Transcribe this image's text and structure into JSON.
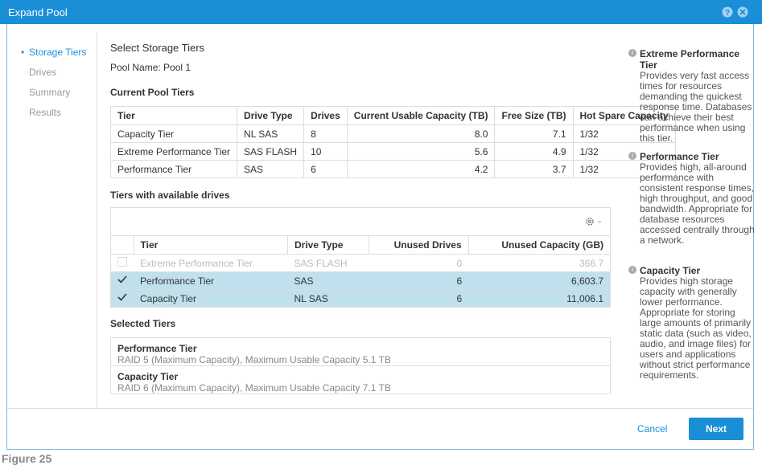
{
  "dialog": {
    "title": "Expand Pool"
  },
  "nav": [
    {
      "label": "Storage Tiers",
      "current": true
    },
    {
      "label": "Drives",
      "current": false
    },
    {
      "label": "Summary",
      "current": false
    },
    {
      "label": "Results",
      "current": false
    }
  ],
  "main": {
    "heading": "Select Storage Tiers",
    "pool_name": "Pool Name: Pool 1",
    "current_tiers": {
      "heading": "Current Pool Tiers",
      "columns": [
        "Tier",
        "Drive Type",
        "Drives",
        "Current Usable Capacity (TB)",
        "Free Size (TB)",
        "Hot Spare Capacity"
      ],
      "rows": [
        [
          "Capacity Tier",
          "NL SAS",
          "8",
          "8.0",
          "7.1",
          "1/32"
        ],
        [
          "Extreme Performance Tier",
          "SAS FLASH",
          "10",
          "5.6",
          "4.9",
          "1/32"
        ],
        [
          "Performance Tier",
          "SAS",
          "6",
          "4.2",
          "3.7",
          "1/32"
        ]
      ]
    },
    "available_tiers": {
      "heading": "Tiers with available drives",
      "columns": [
        "Tier",
        "Drive Type",
        "Unused Drives",
        "Unused Capacity (GB)"
      ],
      "rows": [
        {
          "enabled": false,
          "checked": false,
          "cells": [
            "Extreme Performance Tier",
            "SAS FLASH",
            "0",
            "366.7"
          ]
        },
        {
          "enabled": true,
          "checked": true,
          "cells": [
            "Performance Tier",
            "SAS",
            "6",
            "6,603.7"
          ]
        },
        {
          "enabled": true,
          "checked": true,
          "cells": [
            "Capacity Tier",
            "NL SAS",
            "6",
            "11,006.1"
          ]
        }
      ]
    },
    "selected_tiers": {
      "heading": "Selected Tiers",
      "items": [
        {
          "title": "Performance Tier",
          "detail": "RAID 5 (Maximum Capacity), Maximum Usable Capacity 5.1 TB"
        },
        {
          "title": "Capacity Tier",
          "detail": "RAID 6 (Maximum Capacity), Maximum Usable Capacity 7.1 TB"
        }
      ]
    }
  },
  "help": [
    {
      "title": "Extreme Performance Tier",
      "text": "Provides very fast access times for resources demanding the quickest response time. Databases can achieve their best performance when using this tier."
    },
    {
      "title": "Performance Tier",
      "text": "Provides high, all-around performance with consistent response times, high throughput, and good bandwidth. Appropriate for database resources accessed centrally through a network."
    },
    {
      "title": "Capacity Tier",
      "text": "Provides high storage capacity with generally lower performance. Appropriate for storing large amounts of primarily static data (such as video, audio, and image files) for users and applications without strict performance requirements."
    }
  ],
  "buttons": {
    "cancel": "Cancel",
    "next": "Next"
  },
  "caption": "Figure 25"
}
